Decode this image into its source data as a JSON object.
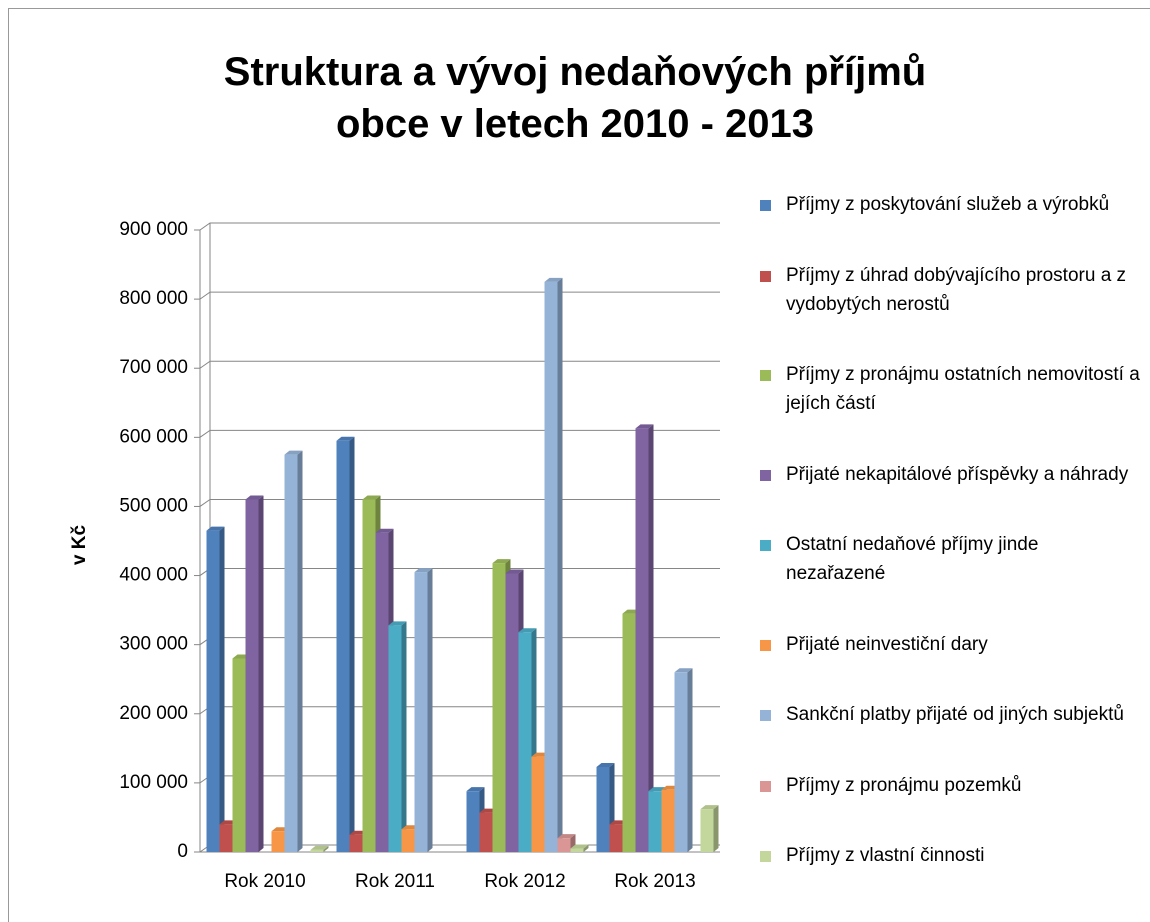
{
  "chart_data": {
    "type": "bar",
    "title": "Struktura a vývoj nedaňových příjmů obce v letech 2010 - 2013",
    "y_label": "v Kč",
    "categories": [
      "Rok 2010",
      "Rok 2011",
      "Rok 2012",
      "Rok 2013"
    ],
    "ylim": [
      0,
      900000
    ],
    "yticks": [
      0,
      {
        "value": 100000,
        "label": "100 000"
      },
      {
        "value": 200000,
        "label": "200 000"
      },
      {
        "value": 300000,
        "label": "300 000"
      },
      {
        "value": 400000,
        "label": "400 000"
      },
      {
        "value": 500000,
        "label": "500 000"
      },
      {
        "value": 600000,
        "label": "600 000"
      },
      {
        "value": 700000,
        "label": "700 000"
      },
      {
        "value": 800000,
        "label": "800 000"
      },
      {
        "value": 900000,
        "label": "900 000"
      }
    ],
    "grid": true,
    "legend": "right",
    "series": [
      {
        "name": "Příjmy z poskytování služeb a výrobků",
        "color": "#4f81bd",
        "values": [
          465000,
          595000,
          88000,
          123000
        ]
      },
      {
        "name": "Příjmy z úhrad dobývajícího prostoru a z vydobytých nerostů",
        "color": "#c0504d",
        "values": [
          40000,
          25000,
          57000,
          40000
        ]
      },
      {
        "name": "Příjmy z pronájmu ostatních nemovitostí a jejích částí",
        "color": "#9bbb59",
        "values": [
          280000,
          510000,
          418000,
          345000
        ]
      },
      {
        "name": "Přijaté nekapitálové příspěvky a náhrady",
        "color": "#8064a2",
        "values": [
          510000,
          462000,
          403000,
          613000
        ]
      },
      {
        "name": "Ostatní nedaňové příjmy jinde nezařazené",
        "color": "#4bacc6",
        "values": [
          null,
          328000,
          318000,
          88000
        ]
      },
      {
        "name": "Přijaté neinvestiční dary",
        "color": "#f79646",
        "values": [
          30000,
          33000,
          138000,
          90000
        ]
      },
      {
        "name": "Sankční platby přijaté od jiných subjektů",
        "color": "#95b3d7",
        "values": [
          575000,
          405000,
          825000,
          260000
        ]
      },
      {
        "name": "Příjmy z pronájmu pozemků",
        "color": "#d99694",
        "values": [
          null,
          null,
          20000,
          null
        ]
      },
      {
        "name": "Příjmy z vlastní činnosti",
        "color": "#c3d69b",
        "values": [
          3000,
          null,
          5000,
          62000
        ]
      }
    ]
  }
}
